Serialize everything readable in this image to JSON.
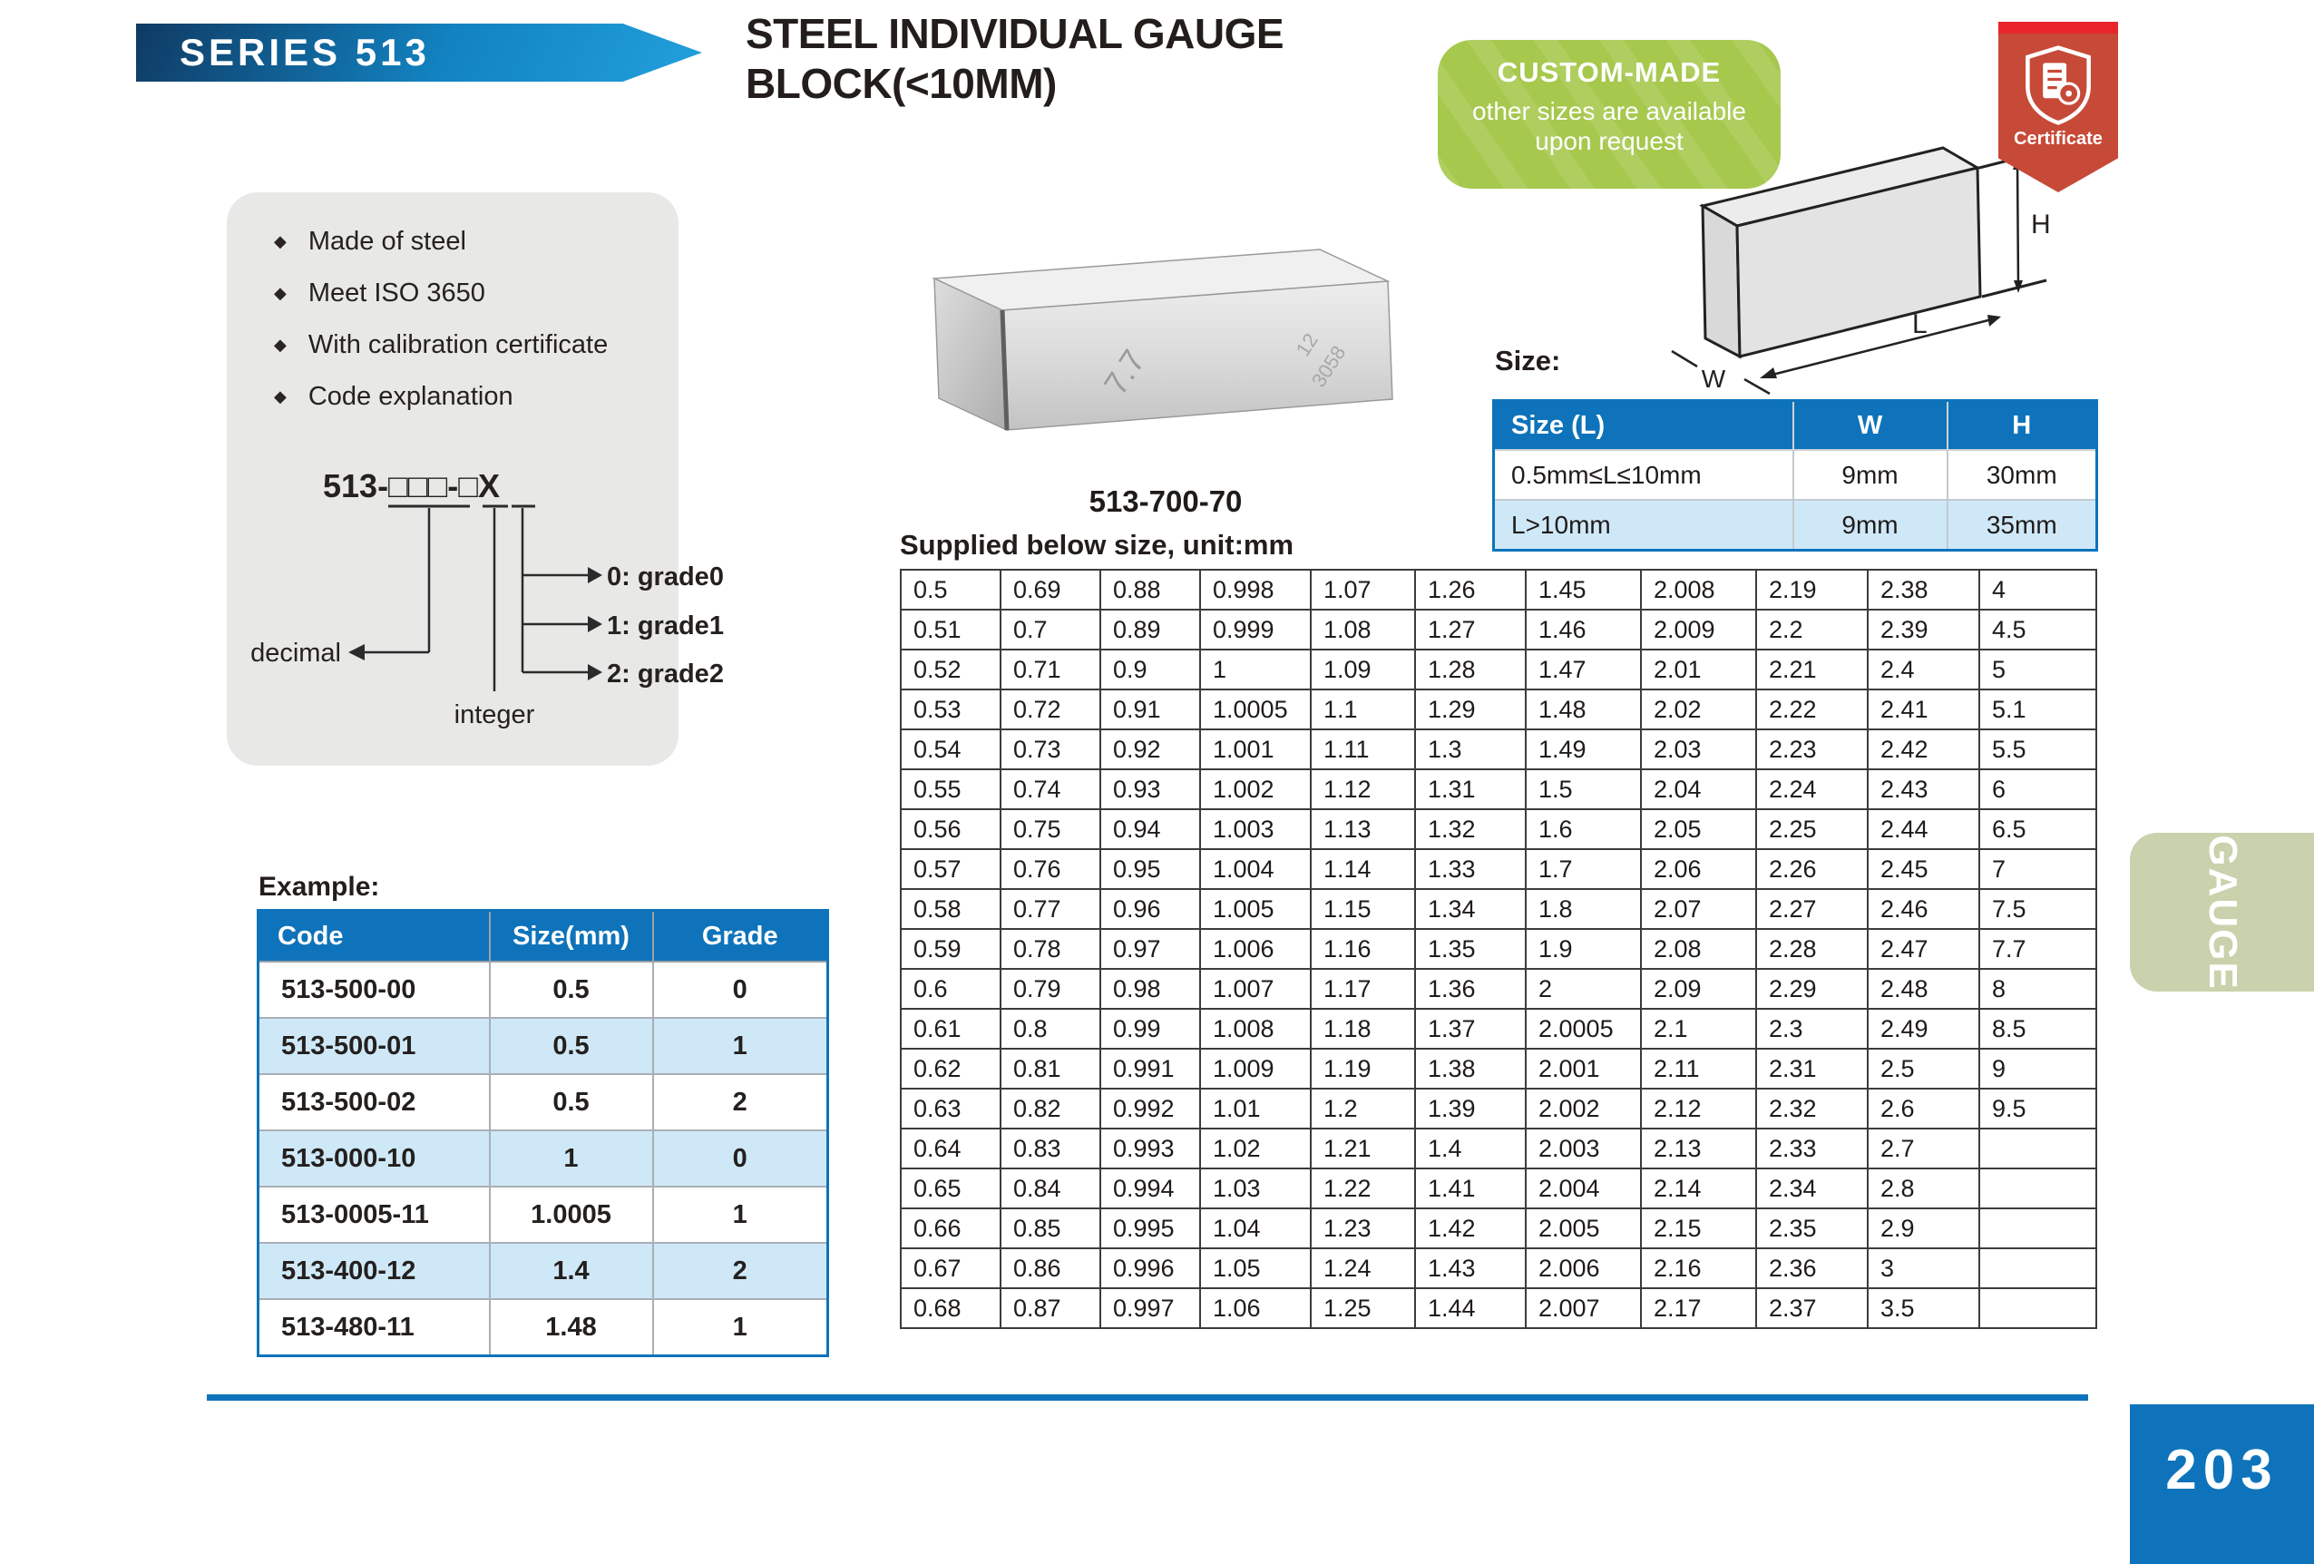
{
  "header": {
    "series": "SERIES 513",
    "title_line1": "STEEL INDIVIDUAL GAUGE",
    "title_line2": "BLOCK(<10MM)"
  },
  "custom_badge": {
    "heading": "CUSTOM-MADE",
    "line1": "other sizes are available",
    "line2": "upon request"
  },
  "certificate": {
    "label": "Certificate"
  },
  "features": [
    "Made of steel",
    "Meet ISO 3650",
    "With calibration certificate",
    "Code explanation"
  ],
  "code_diagram": {
    "code": "513-□□□-□X",
    "decimal_label": "decimal",
    "integer_label": "integer",
    "grade0": "0: grade0",
    "grade1": "1: grade1",
    "grade2": "2: grade2"
  },
  "product": {
    "caption": "513-700-70",
    "engraving_main": "7.7",
    "engraving_top": "12",
    "engraving_bottom": "3058"
  },
  "size_section": {
    "label": "Size:",
    "dim_w": "W",
    "dim_l": "L",
    "dim_h": "H",
    "headers": [
      "Size (L)",
      "W",
      "H"
    ],
    "rows": [
      [
        "0.5mm≤L≤10mm",
        "9mm",
        "30mm"
      ],
      [
        "L>10mm",
        "9mm",
        "35mm"
      ]
    ]
  },
  "example": {
    "label": "Example:",
    "headers": [
      "Code",
      "Size(mm)",
      "Grade"
    ],
    "rows": [
      [
        "513-500-00",
        "0.5",
        "0"
      ],
      [
        "513-500-01",
        "0.5",
        "1"
      ],
      [
        "513-500-02",
        "0.5",
        "2"
      ],
      [
        "513-000-10",
        "1",
        "0"
      ],
      [
        "513-0005-11",
        "1.0005",
        "1"
      ],
      [
        "513-400-12",
        "1.4",
        "2"
      ],
      [
        "513-480-11",
        "1.48",
        "1"
      ]
    ]
  },
  "supplied": {
    "title": "Supplied below size, unit:mm",
    "row_count": 19,
    "columns": [
      [
        "0.5",
        "0.51",
        "0.52",
        "0.53",
        "0.54",
        "0.55",
        "0.56",
        "0.57",
        "0.58",
        "0.59",
        "0.6",
        "0.61",
        "0.62",
        "0.63",
        "0.64",
        "0.65",
        "0.66",
        "0.67",
        "0.68"
      ],
      [
        "0.69",
        "0.7",
        "0.71",
        "0.72",
        "0.73",
        "0.74",
        "0.75",
        "0.76",
        "0.77",
        "0.78",
        "0.79",
        "0.8",
        "0.81",
        "0.82",
        "0.83",
        "0.84",
        "0.85",
        "0.86",
        "0.87"
      ],
      [
        "0.88",
        "0.89",
        "0.9",
        "0.91",
        "0.92",
        "0.93",
        "0.94",
        "0.95",
        "0.96",
        "0.97",
        "0.98",
        "0.99",
        "0.991",
        "0.992",
        "0.993",
        "0.994",
        "0.995",
        "0.996",
        "0.997"
      ],
      [
        "0.998",
        "0.999",
        "1",
        "1.0005",
        "1.001",
        "1.002",
        "1.003",
        "1.004",
        "1.005",
        "1.006",
        "1.007",
        "1.008",
        "1.009",
        "1.01",
        "1.02",
        "1.03",
        "1.04",
        "1.05",
        "1.06"
      ],
      [
        "1.07",
        "1.08",
        "1.09",
        "1.1",
        "1.11",
        "1.12",
        "1.13",
        "1.14",
        "1.15",
        "1.16",
        "1.17",
        "1.18",
        "1.19",
        "1.2",
        "1.21",
        "1.22",
        "1.23",
        "1.24",
        "1.25"
      ],
      [
        "1.26",
        "1.27",
        "1.28",
        "1.29",
        "1.3",
        "1.31",
        "1.32",
        "1.33",
        "1.34",
        "1.35",
        "1.36",
        "1.37",
        "1.38",
        "1.39",
        "1.4",
        "1.41",
        "1.42",
        "1.43",
        "1.44"
      ],
      [
        "1.45",
        "1.46",
        "1.47",
        "1.48",
        "1.49",
        "1.5",
        "1.6",
        "1.7",
        "1.8",
        "1.9",
        "2",
        "2.0005",
        "2.001",
        "2.002",
        "2.003",
        "2.004",
        "2.005",
        "2.006",
        "2.007"
      ],
      [
        "2.008",
        "2.009",
        "2.01",
        "2.02",
        "2.03",
        "2.04",
        "2.05",
        "2.06",
        "2.07",
        "2.08",
        "2.09",
        "2.1",
        "2.11",
        "2.12",
        "2.13",
        "2.14",
        "2.15",
        "2.16",
        "2.17"
      ],
      [
        "2.19",
        "2.2",
        "2.21",
        "2.22",
        "2.23",
        "2.24",
        "2.25",
        "2.26",
        "2.27",
        "2.28",
        "2.29",
        "2.3",
        "2.31",
        "2.32",
        "2.33",
        "2.34",
        "2.35",
        "2.36",
        "2.37"
      ],
      [
        "2.38",
        "2.39",
        "2.4",
        "2.41",
        "2.42",
        "2.43",
        "2.44",
        "2.45",
        "2.46",
        "2.47",
        "2.48",
        "2.49",
        "2.5",
        "2.6",
        "2.7",
        "2.8",
        "2.9",
        "3",
        "3.5"
      ],
      [
        "4",
        "4.5",
        "5",
        "5.1",
        "5.5",
        "6",
        "6.5",
        "7",
        "7.5",
        "7.7",
        "8",
        "8.5",
        "9",
        "9.5",
        "",
        "",
        "",
        "",
        ""
      ]
    ]
  },
  "footer": {
    "side_tab": "GAUGE",
    "page_number": "203"
  },
  "colors": {
    "accent_blue": "#0e73ba",
    "banner_blue_light": "#22a0dc",
    "light_blue_row": "#cfe8f8",
    "badge_green": "#a6c84d",
    "ribbon_red": "#c74937",
    "ribbon_stripe_red": "#e9252b",
    "tab_green": "#c9d2ac"
  }
}
